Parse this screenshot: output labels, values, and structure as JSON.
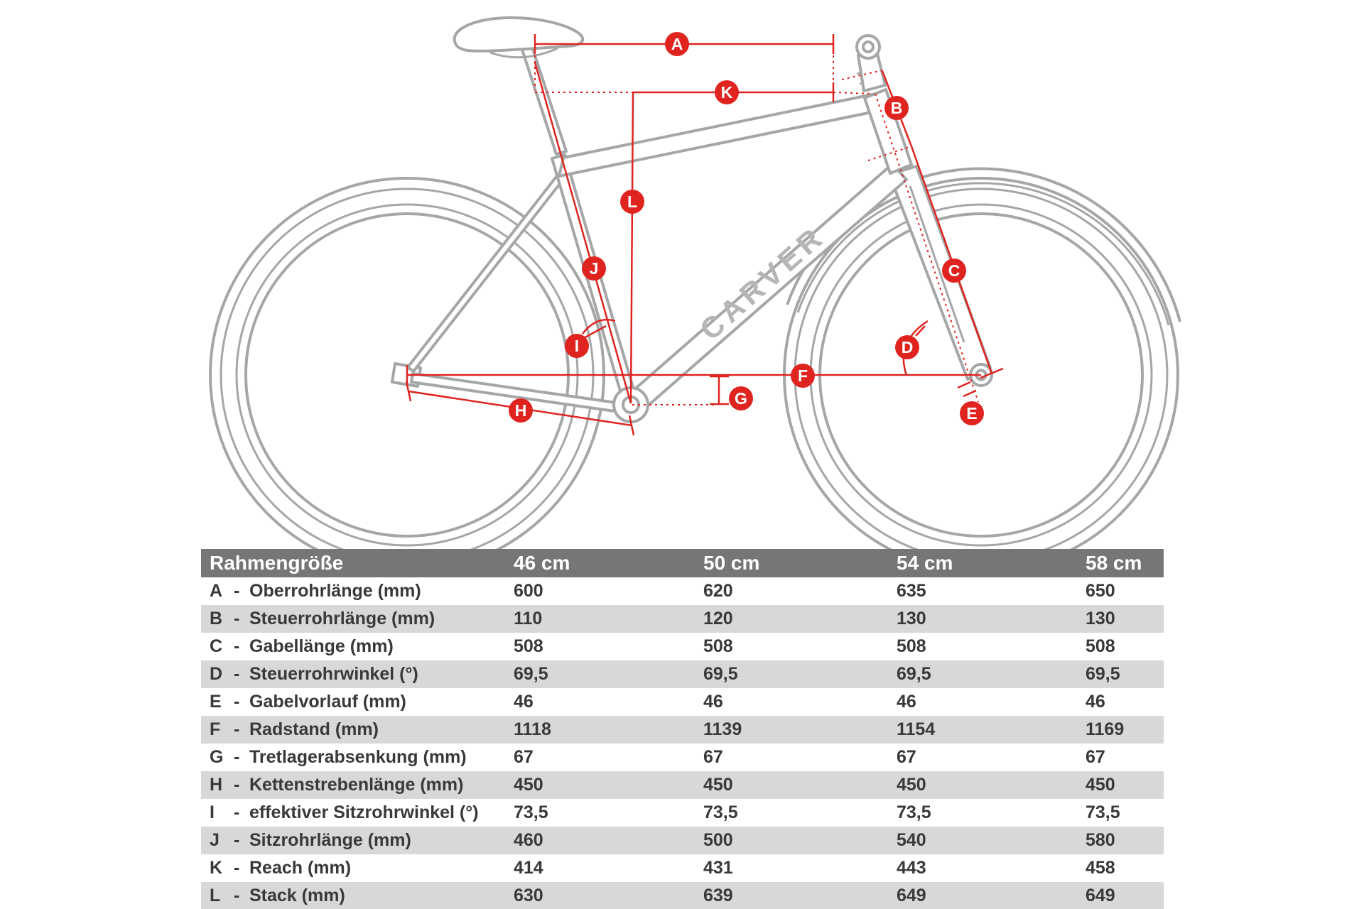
{
  "diagram": {
    "brand": "CARVER",
    "labels": [
      {
        "letter": "A"
      },
      {
        "letter": "B"
      },
      {
        "letter": "C"
      },
      {
        "letter": "D"
      },
      {
        "letter": "E"
      },
      {
        "letter": "F"
      },
      {
        "letter": "G"
      },
      {
        "letter": "H"
      },
      {
        "letter": "I"
      },
      {
        "letter": "J"
      },
      {
        "letter": "K"
      },
      {
        "letter": "L"
      }
    ],
    "colors": {
      "red": "#df2420",
      "frame_gray": "#a5a6a8",
      "logo_gray": "#b4b5b7"
    }
  },
  "table": {
    "header_label": "Rahmengröße",
    "size_headers": [
      "46 cm",
      "50 cm",
      "54 cm",
      "58 cm"
    ],
    "separator": "-",
    "header_bg": "#757678",
    "stripe_bg": "#d7d8d9",
    "rows": [
      {
        "letter": "A",
        "label": "Oberrohrlänge (mm)",
        "values": [
          "600",
          "620",
          "635",
          "650"
        ]
      },
      {
        "letter": "B",
        "label": "Steuerrohrlänge (mm)",
        "values": [
          "110",
          "120",
          "130",
          "130"
        ]
      },
      {
        "letter": "C",
        "label": "Gabellänge (mm)",
        "values": [
          "508",
          "508",
          "508",
          "508"
        ]
      },
      {
        "letter": "D",
        "label": "Steuerrohrwinkel (°)",
        "values": [
          "69,5",
          "69,5",
          "69,5",
          "69,5"
        ]
      },
      {
        "letter": "E",
        "label": "Gabelvorlauf (mm)",
        "values": [
          "46",
          "46",
          "46",
          "46"
        ]
      },
      {
        "letter": "F",
        "label": "Radstand (mm)",
        "values": [
          "1118",
          "1139",
          "1154",
          "1169"
        ]
      },
      {
        "letter": "G",
        "label": "Tretlagerabsenkung (mm)",
        "values": [
          "67",
          "67",
          "67",
          "67"
        ]
      },
      {
        "letter": "H",
        "label": "Kettenstrebenlänge (mm)",
        "values": [
          "450",
          "450",
          "450",
          "450"
        ]
      },
      {
        "letter": "I",
        "label": "effektiver Sitzrohrwinkel (°)",
        "values": [
          "73,5",
          "73,5",
          "73,5",
          "73,5"
        ]
      },
      {
        "letter": "J",
        "label": "Sitzrohrlänge (mm)",
        "values": [
          "460",
          "500",
          "540",
          "580"
        ]
      },
      {
        "letter": "K",
        "label": "Reach (mm)",
        "values": [
          "414",
          "431",
          "443",
          "458"
        ]
      },
      {
        "letter": "L",
        "label": "Stack (mm)",
        "values": [
          "630",
          "639",
          "649",
          "649"
        ]
      }
    ]
  }
}
